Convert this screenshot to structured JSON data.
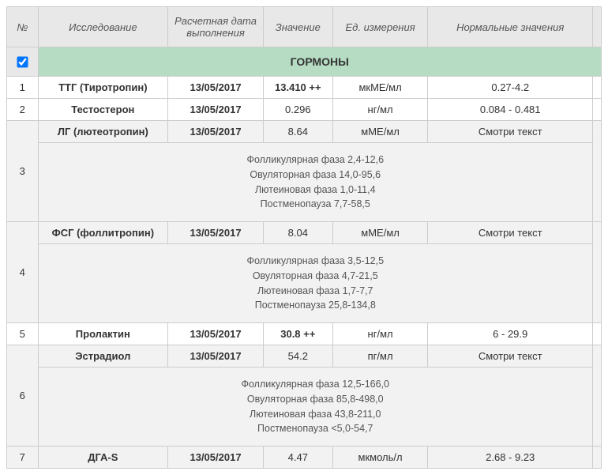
{
  "columns": {
    "num": "№",
    "study": "Исследование",
    "date": "Расчетная дата выполнения",
    "value": "Значение",
    "unit": "Ед. измерения",
    "normal": "Нормальные значения"
  },
  "section": {
    "title": "ГОРМОНЫ",
    "checked": true
  },
  "rows": [
    {
      "num": "1",
      "study": "ТТГ (Тиротропин)",
      "date": "13/05/2017",
      "value": "13.410 ++",
      "unit": "мкМЕ/мл",
      "normal": "0.27-4.2",
      "boldStudy": true,
      "boldDate": true,
      "boldValue": true,
      "zebra": "odd"
    },
    {
      "num": "2",
      "study": "Тестостерон",
      "date": "13/05/2017",
      "value": "0.296",
      "unit": "нг/мл",
      "normal": "0.084 - 0.481",
      "boldStudy": true,
      "boldDate": true,
      "zebra": "odd"
    },
    {
      "num": "3",
      "study": "ЛГ (лютеотропин)",
      "date": "13/05/2017",
      "value": "8.64",
      "unit": "мМЕ/мл",
      "normal": "Смотри текст",
      "boldStudy": true,
      "boldDate": true,
      "zebra": "even",
      "note": [
        "Фолликулярная фаза 2,4-12,6",
        "Овуляторная фаза 14,0-95,6",
        "Лютеиновая фаза 1,0-11,4",
        "Постменопауза 7,7-58,5"
      ]
    },
    {
      "num": "4",
      "study": "ФСГ (фоллитропин)",
      "date": "13/05/2017",
      "value": "8.04",
      "unit": "мМЕ/мл",
      "normal": "Смотри текст",
      "boldStudy": true,
      "boldDate": true,
      "zebra": "even",
      "note": [
        "Фолликулярная фаза 3,5-12,5",
        "Овуляторная фаза 4,7-21,5",
        "Лютеиновая фаза 1,7-7,7",
        "Постменопауза 25,8-134,8"
      ]
    },
    {
      "num": "5",
      "study": "Пролактин",
      "date": "13/05/2017",
      "value": "30.8 ++",
      "unit": "нг/мл",
      "normal": "6 - 29.9",
      "boldStudy": true,
      "boldDate": true,
      "boldValue": true,
      "zebra": "odd"
    },
    {
      "num": "6",
      "study": "Эстрадиол",
      "date": "13/05/2017",
      "value": "54.2",
      "unit": "пг/мл",
      "normal": "Смотри текст",
      "boldStudy": true,
      "boldDate": true,
      "zebra": "even",
      "note": [
        "Фолликулярная фаза 12,5-166,0",
        "Овуляторная фаза 85,8-498,0",
        "Лютеиновая фаза 43,8-211,0",
        "Постменопауза <5,0-54,7"
      ]
    },
    {
      "num": "7",
      "study": "ДГА-S",
      "date": "13/05/2017",
      "value": "4.47",
      "unit": "мкмоль/л",
      "normal": "2.68 - 9.23",
      "boldStudy": true,
      "boldDate": true,
      "zebra": "even"
    }
  ]
}
